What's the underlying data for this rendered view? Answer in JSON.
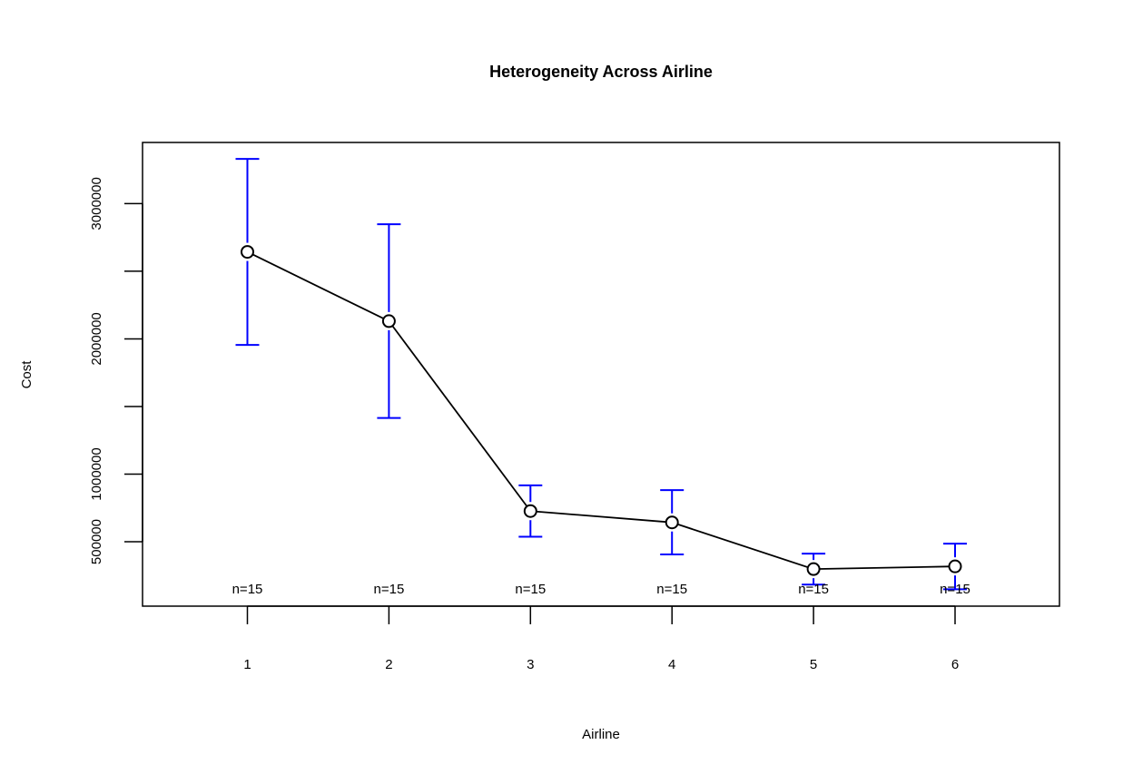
{
  "chart_data": {
    "type": "line",
    "title": "Heterogeneity Across Airline",
    "xlabel": "Airline",
    "ylabel": "Cost",
    "categories": [
      "1",
      "2",
      "3",
      "4",
      "5",
      "6"
    ],
    "means": [
      2643000,
      2131000,
      727000,
      643000,
      298000,
      318000
    ],
    "upper": [
      3330000,
      2847000,
      917000,
      882000,
      412000,
      486000
    ],
    "lower": [
      1955000,
      1415000,
      537000,
      406000,
      183000,
      149000
    ],
    "n_labels": [
      "n=15",
      "n=15",
      "n=15",
      "n=15",
      "n=15",
      "n=15"
    ],
    "y_ticks": [
      500000,
      1000000,
      1500000,
      2000000,
      2500000,
      3000000
    ],
    "y_tick_labels": [
      "500000",
      "1000000",
      "",
      "2000000",
      "",
      "3000000"
    ],
    "ylim": [
      24000,
      3452000
    ],
    "grid": false,
    "legend": false,
    "colors": {
      "line": "#000000",
      "error_bars": "#0000ff",
      "points": "#000000"
    }
  }
}
